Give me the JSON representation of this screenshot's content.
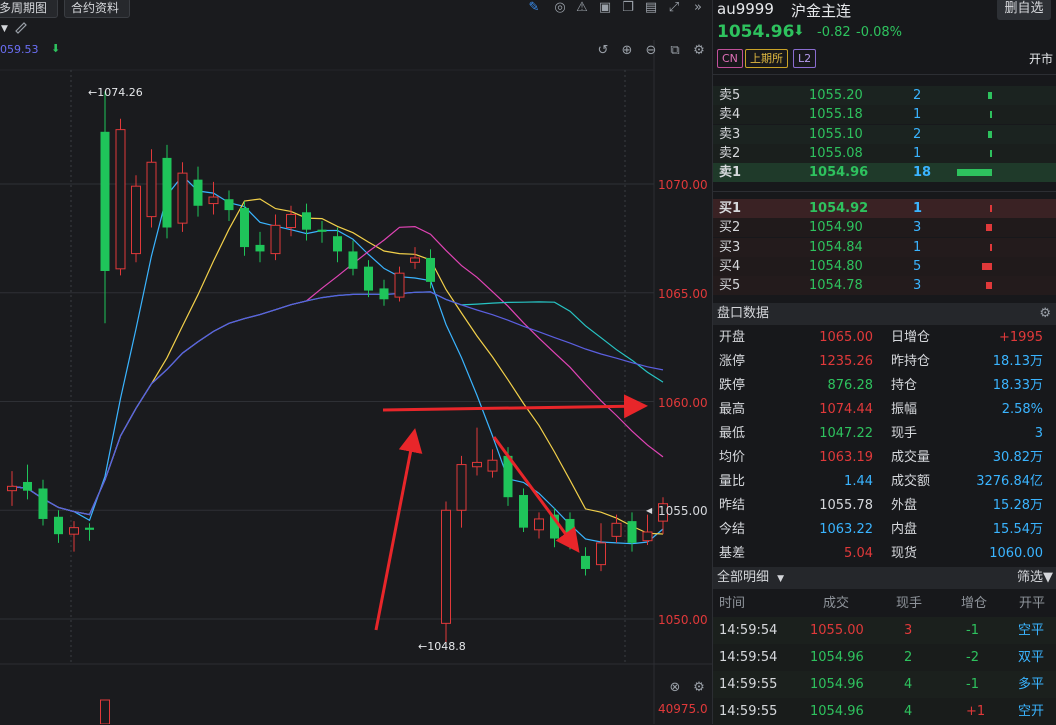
{
  "toolbar": {
    "period_label": "多周期图",
    "contract_info": "合约资料",
    "ma_value": "059.53"
  },
  "chart": {
    "price_labels": [
      "1070.00",
      "1065.00",
      "1060.00",
      "1055.00",
      "1050.00"
    ],
    "volume_label": "40975.0",
    "high_mark": "1074.26",
    "low_mark": "1048.8"
  },
  "chart_data": {
    "type": "candlestick",
    "ylim": [
      1048.0,
      1075.5
    ],
    "hlines": [
      1070,
      1065,
      1060,
      1055,
      1050
    ],
    "candles": [
      {
        "o": 1055.9,
        "c": 1056.1,
        "h": 1056.8,
        "l": 1055.2
      },
      {
        "o": 1056.3,
        "c": 1055.9,
        "h": 1057.1,
        "l": 1055.5
      },
      {
        "o": 1056.0,
        "c": 1054.6,
        "h": 1056.4,
        "l": 1054.3
      },
      {
        "o": 1054.7,
        "c": 1053.9,
        "h": 1055.0,
        "l": 1053.5
      },
      {
        "o": 1053.9,
        "c": 1054.2,
        "h": 1054.5,
        "l": 1053.1
      },
      {
        "o": 1054.2,
        "c": 1054.1,
        "h": 1054.4,
        "l": 1053.6
      },
      {
        "o": 1072.4,
        "c": 1066.0,
        "h": 1074.26,
        "l": 1063.6
      },
      {
        "o": 1066.1,
        "c": 1072.5,
        "h": 1073.0,
        "l": 1065.8
      },
      {
        "o": 1066.8,
        "c": 1069.9,
        "h": 1070.4,
        "l": 1066.4
      },
      {
        "o": 1068.5,
        "c": 1071.0,
        "h": 1071.6,
        "l": 1068.0
      },
      {
        "o": 1071.2,
        "c": 1068.0,
        "h": 1071.8,
        "l": 1067.5
      },
      {
        "o": 1068.2,
        "c": 1070.5,
        "h": 1071.0,
        "l": 1067.8
      },
      {
        "o": 1070.2,
        "c": 1069.0,
        "h": 1070.8,
        "l": 1068.5
      },
      {
        "o": 1069.1,
        "c": 1069.4,
        "h": 1070.1,
        "l": 1068.6
      },
      {
        "o": 1069.3,
        "c": 1068.8,
        "h": 1069.7,
        "l": 1068.3
      },
      {
        "o": 1068.9,
        "c": 1067.1,
        "h": 1069.2,
        "l": 1066.7
      },
      {
        "o": 1067.2,
        "c": 1066.9,
        "h": 1067.8,
        "l": 1066.4
      },
      {
        "o": 1066.8,
        "c": 1068.1,
        "h": 1068.6,
        "l": 1066.5
      },
      {
        "o": 1068.0,
        "c": 1068.6,
        "h": 1069.0,
        "l": 1067.6
      },
      {
        "o": 1068.7,
        "c": 1067.9,
        "h": 1069.1,
        "l": 1067.4
      },
      {
        "o": 1067.9,
        "c": 1067.8,
        "h": 1068.3,
        "l": 1067.3
      },
      {
        "o": 1067.6,
        "c": 1066.9,
        "h": 1068.0,
        "l": 1066.4
      },
      {
        "o": 1066.9,
        "c": 1066.1,
        "h": 1067.4,
        "l": 1065.8
      },
      {
        "o": 1066.2,
        "c": 1065.1,
        "h": 1066.5,
        "l": 1064.8
      },
      {
        "o": 1065.2,
        "c": 1064.7,
        "h": 1065.6,
        "l": 1064.4
      },
      {
        "o": 1064.8,
        "c": 1065.9,
        "h": 1066.2,
        "l": 1064.6
      },
      {
        "o": 1066.4,
        "c": 1066.6,
        "h": 1067.1,
        "l": 1066.1
      },
      {
        "o": 1066.6,
        "c": 1065.5,
        "h": 1067.0,
        "l": 1065.2
      },
      {
        "o": 1049.8,
        "c": 1055.0,
        "h": 1055.4,
        "l": 1048.8
      },
      {
        "o": 1055.0,
        "c": 1057.1,
        "h": 1057.5,
        "l": 1054.2
      },
      {
        "o": 1057.0,
        "c": 1057.2,
        "h": 1058.8,
        "l": 1056.6
      },
      {
        "o": 1056.8,
        "c": 1057.3,
        "h": 1057.8,
        "l": 1056.5
      },
      {
        "o": 1057.5,
        "c": 1055.6,
        "h": 1057.9,
        "l": 1055.2
      },
      {
        "o": 1055.7,
        "c": 1054.2,
        "h": 1056.0,
        "l": 1054.0
      },
      {
        "o": 1054.1,
        "c": 1054.6,
        "h": 1054.9,
        "l": 1053.7
      },
      {
        "o": 1054.8,
        "c": 1053.7,
        "h": 1055.1,
        "l": 1053.3
      },
      {
        "o": 1054.6,
        "c": 1053.6,
        "h": 1054.9,
        "l": 1053.2
      },
      {
        "o": 1052.9,
        "c": 1052.3,
        "h": 1053.3,
        "l": 1052.0
      },
      {
        "o": 1052.5,
        "c": 1053.5,
        "h": 1054.4,
        "l": 1052.2
      },
      {
        "o": 1053.8,
        "c": 1054.4,
        "h": 1054.8,
        "l": 1053.5
      },
      {
        "o": 1054.5,
        "c": 1053.5,
        "h": 1054.9,
        "l": 1053.1
      },
      {
        "o": 1053.6,
        "c": 1054.0,
        "h": 1054.8,
        "l": 1053.4
      },
      {
        "o": 1054.5,
        "c": 1055.3,
        "h": 1055.6,
        "l": 1053.9
      }
    ]
  },
  "header": {
    "symbol": "au9999",
    "name": "沪金主连",
    "watch_button": "删自选",
    "last_price": "1054.96",
    "change": "-0.82",
    "change_pct": "-0.08%",
    "tag_cn": "CN",
    "tag_exchange": "上期所",
    "tag_l2": "L2",
    "session": "开市"
  },
  "orderbook": {
    "asks": [
      {
        "label": "卖5",
        "price": "1055.20",
        "qty": "2",
        "bar": 0.11
      },
      {
        "label": "卖4",
        "price": "1055.18",
        "qty": "1",
        "bar": 0.06
      },
      {
        "label": "卖3",
        "price": "1055.10",
        "qty": "2",
        "bar": 0.11
      },
      {
        "label": "卖2",
        "price": "1055.08",
        "qty": "1",
        "bar": 0.06
      },
      {
        "label": "卖1",
        "price": "1054.96",
        "qty": "18",
        "bar": 1.0
      }
    ],
    "bids": [
      {
        "label": "买1",
        "price": "1054.92",
        "qty": "1",
        "bar": 0.06
      },
      {
        "label": "买2",
        "price": "1054.90",
        "qty": "3",
        "bar": 0.17
      },
      {
        "label": "买3",
        "price": "1054.84",
        "qty": "1",
        "bar": 0.06
      },
      {
        "label": "买4",
        "price": "1054.80",
        "qty": "5",
        "bar": 0.28
      },
      {
        "label": "买5",
        "price": "1054.78",
        "qty": "3",
        "bar": 0.17
      }
    ]
  },
  "stats": {
    "title": "盘口数据",
    "left": [
      {
        "label": "开盘",
        "value": "1065.00",
        "color": "#e0393a"
      },
      {
        "label": "涨停",
        "value": "1235.26",
        "color": "#e0393a"
      },
      {
        "label": "跌停",
        "value": "876.28",
        "color": "#2ec25e"
      },
      {
        "label": "最高",
        "value": "1074.44",
        "color": "#e0393a"
      },
      {
        "label": "最低",
        "value": "1047.22",
        "color": "#2ec25e"
      },
      {
        "label": "均价",
        "value": "1063.19",
        "color": "#e0393a"
      },
      {
        "label": "量比",
        "value": "1.44",
        "color": "#3ab4ff"
      },
      {
        "label": "昨结",
        "value": "1055.78",
        "color": "#d6d8dc"
      },
      {
        "label": "今结",
        "value": "1063.22",
        "color": "#3ab4ff"
      },
      {
        "label": "基差",
        "value": "5.04",
        "color": "#e0393a"
      }
    ],
    "right": [
      {
        "label": "日增仓",
        "value": "+1995",
        "color": "#e0393a"
      },
      {
        "label": "昨持仓",
        "value": "18.13万",
        "color": "#3ab4ff"
      },
      {
        "label": "持仓",
        "value": "18.33万",
        "color": "#3ab4ff"
      },
      {
        "label": "振幅",
        "value": "2.58%",
        "color": "#3ab4ff"
      },
      {
        "label": "现手",
        "value": "3",
        "color": "#3ab4ff"
      },
      {
        "label": "成交量",
        "value": "30.82万",
        "color": "#3ab4ff"
      },
      {
        "label": "成交额",
        "value": "3276.84亿",
        "color": "#3ab4ff"
      },
      {
        "label": "外盘",
        "value": "15.28万",
        "color": "#3ab4ff"
      },
      {
        "label": "内盘",
        "value": "15.54万",
        "color": "#3ab4ff"
      },
      {
        "label": "现货",
        "value": "1060.00",
        "color": "#3ab4ff"
      }
    ]
  },
  "trades": {
    "title": "全部明细",
    "filter": "筛选",
    "columns": [
      "时间",
      "成交",
      "现手",
      "增仓",
      "开平"
    ],
    "rows": [
      {
        "time": "14:59:54",
        "price": "1055.00",
        "price_color": "#e0393a",
        "qty": "3",
        "qty_color": "#e0393a",
        "oi": "-1",
        "oi_color": "#2ec25e",
        "type": "空平",
        "type_color": "#3ab4ff"
      },
      {
        "time": "14:59:54",
        "price": "1054.96",
        "price_color": "#2ec25e",
        "qty": "2",
        "qty_color": "#2ec25e",
        "oi": "-2",
        "oi_color": "#2ec25e",
        "type": "双平",
        "type_color": "#3ab4ff"
      },
      {
        "time": "14:59:55",
        "price": "1054.96",
        "price_color": "#2ec25e",
        "qty": "4",
        "qty_color": "#2ec25e",
        "oi": "-1",
        "oi_color": "#2ec25e",
        "type": "多平",
        "type_color": "#3ab4ff"
      },
      {
        "time": "14:59:55",
        "price": "1054.96",
        "price_color": "#2ec25e",
        "qty": "4",
        "qty_color": "#2ec25e",
        "oi": "+1",
        "oi_color": "#e0393a",
        "type": "空开",
        "type_color": "#3ab4ff"
      }
    ]
  }
}
